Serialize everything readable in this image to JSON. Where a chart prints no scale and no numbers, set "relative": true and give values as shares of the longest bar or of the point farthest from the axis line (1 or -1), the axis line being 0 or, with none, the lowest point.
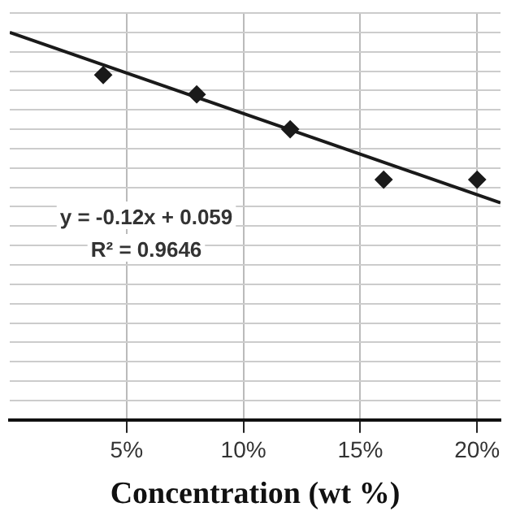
{
  "chart_data": {
    "type": "scatter",
    "xlabel": "Concentration (wt %)",
    "relative": true,
    "xlim": [
      0,
      21
    ],
    "xticks": [
      {
        "value": 5,
        "label": "5%"
      },
      {
        "value": 10,
        "label": "10%"
      },
      {
        "value": 15,
        "label": "15%"
      },
      {
        "value": 20,
        "label": "20%"
      }
    ],
    "series": [
      {
        "color": "#1a1a1a",
        "marker": "diamond",
        "x": [
          4,
          8,
          12,
          16,
          20
        ],
        "values": [
          0.89,
          0.84,
          0.75,
          0.62,
          0.62
        ]
      },
      {
        "type": "line",
        "color": "#1a1a1a",
        "x": [
          0,
          21
        ],
        "values": [
          1,
          0.56
        ]
      }
    ],
    "annotations": [
      "y = -0.12x + 0.059",
      "R² = 0.9646"
    ],
    "grid": true
  }
}
